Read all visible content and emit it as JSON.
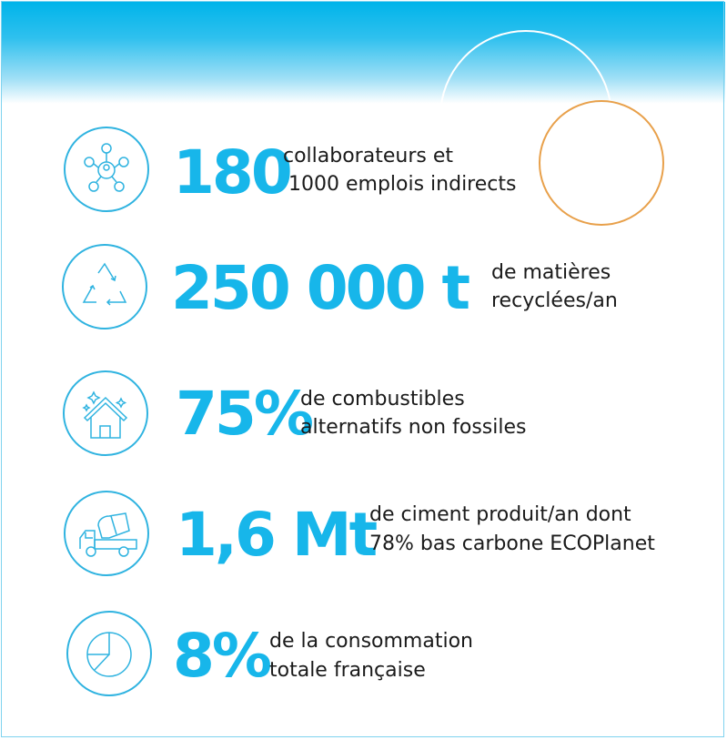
{
  "colors": {
    "accent": "#17b6ea",
    "orange": "#e8a04a",
    "border": "#7fd3ef"
  },
  "stats": [
    {
      "value": "180",
      "line1": "collaborateurs et",
      "line2": "1000 emplois indirects",
      "icon": "network-people-icon"
    },
    {
      "value": "250 000 t",
      "line1": "de matières",
      "line2": "recyclées/an",
      "icon": "recycle-icon"
    },
    {
      "value": "75%",
      "line1": "de combustibles",
      "line2": "alternatifs non fossiles",
      "icon": "house-sparkle-icon"
    },
    {
      "value": "1,6 Mt",
      "line1": "de ciment produit/an dont",
      "line2": "78% bas carbone ECOPlanet",
      "icon": "cement-truck-icon"
    },
    {
      "value": "8%",
      "line1": "de la consommation",
      "line2": "totale française",
      "icon": "pie-chart-icon"
    }
  ]
}
